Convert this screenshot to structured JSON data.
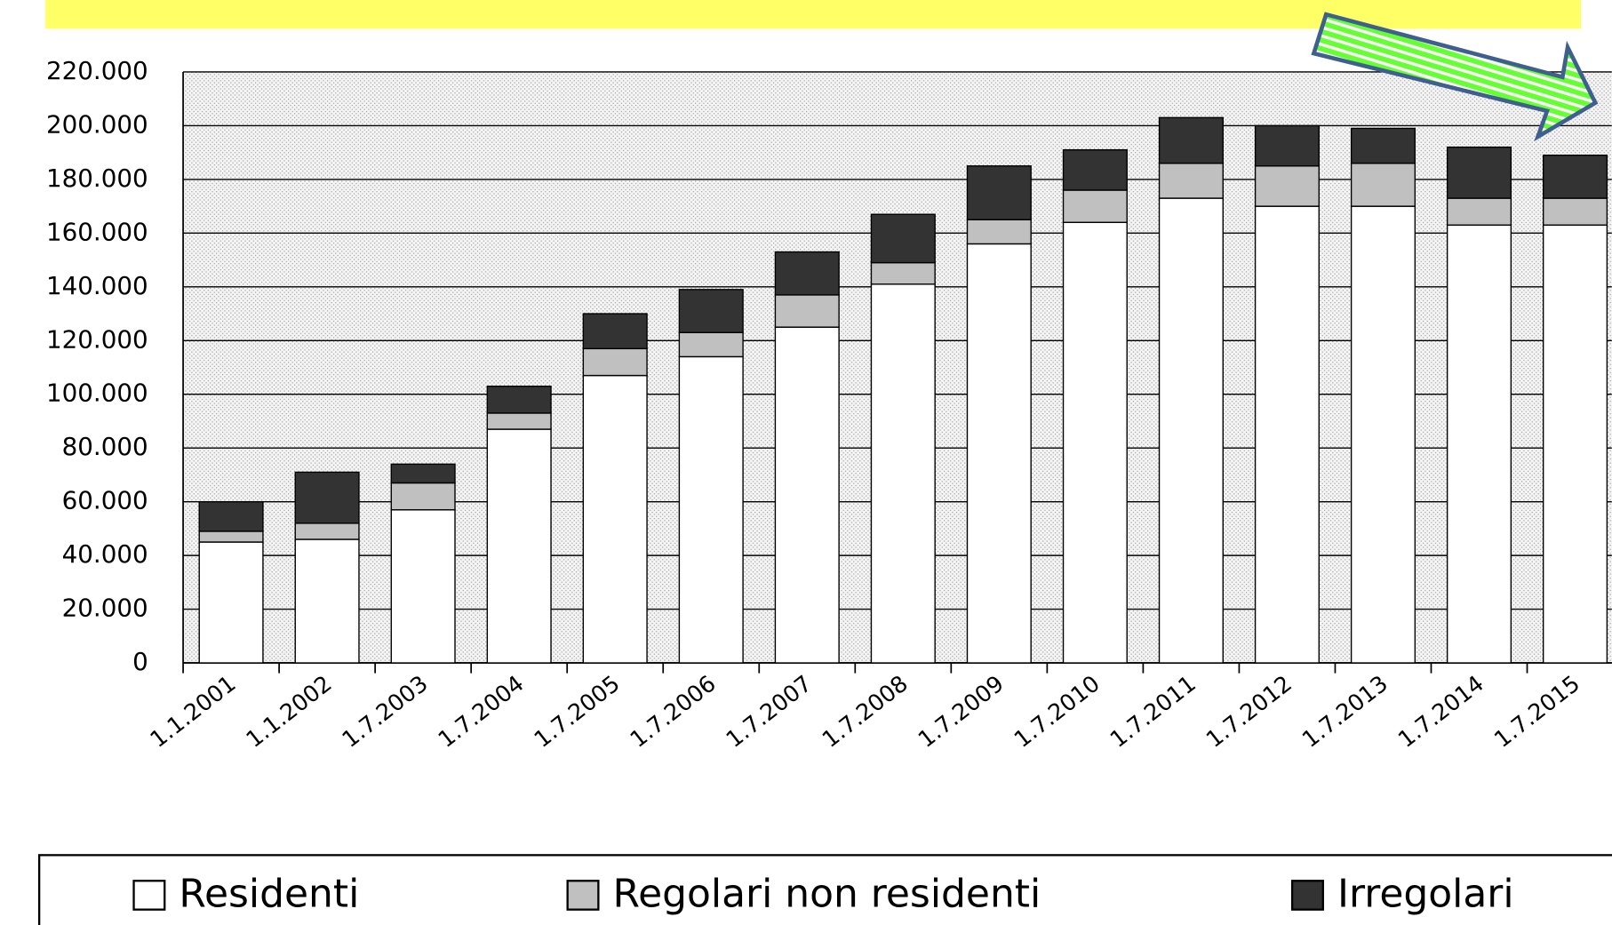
{
  "chart_data": {
    "type": "bar",
    "stacked": true,
    "categories": [
      "1.1.2001",
      "1.1.2002",
      "1.7.2003",
      "1.7.2004",
      "1.7.2005",
      "1.7.2006",
      "1.7.2007",
      "1.7.2008",
      "1.7.2009",
      "1.7.2010",
      "1.7.2011",
      "1.7.2012",
      "1.7.2013",
      "1.7.2014",
      "1.7.2015"
    ],
    "series": [
      {
        "name": "Residenti",
        "color": "#ffffff",
        "values": [
          45000,
          46000,
          57000,
          87000,
          107000,
          114000,
          125000,
          141000,
          156000,
          164000,
          173000,
          170000,
          170000,
          163000,
          163000
        ]
      },
      {
        "name": "Regolari non residenti",
        "color": "#c0c0c0",
        "values": [
          4000,
          6000,
          10000,
          6000,
          10000,
          9000,
          12000,
          8000,
          9000,
          12000,
          13000,
          15000,
          16000,
          10000,
          10000
        ]
      },
      {
        "name": "Irregolari",
        "color": "#333333",
        "values": [
          11000,
          19000,
          7000,
          10000,
          13000,
          16000,
          16000,
          18000,
          20000,
          15000,
          17000,
          15000,
          13000,
          19000,
          16000
        ]
      }
    ],
    "ylim": [
      0,
      220000
    ],
    "yticks": [
      0,
      {
        "value": 20000,
        "label": "20.000"
      },
      {
        "value": 40000,
        "label": "40.000"
      },
      {
        "value": 60000,
        "label": "60.000"
      },
      {
        "value": 80000,
        "label": "80.000"
      },
      {
        "value": 100000,
        "label": "100.000"
      },
      {
        "value": 120000,
        "label": "120.000"
      },
      {
        "value": 140000,
        "label": "140.000"
      },
      {
        "value": 160000,
        "label": "160.000"
      },
      {
        "value": 180000,
        "label": "180.000"
      },
      {
        "value": 200000,
        "label": "200.000"
      },
      {
        "value": 220000,
        "label": "220.000"
      }
    ],
    "grid": true,
    "legend": "bottom"
  }
}
